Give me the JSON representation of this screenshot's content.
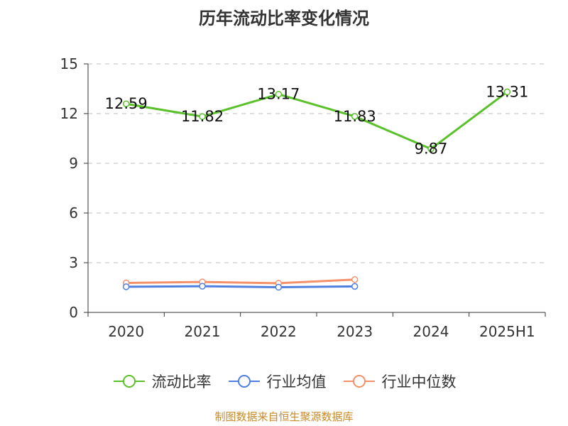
{
  "source": "制图数据来自恒生聚源数据库",
  "chart_data": {
    "type": "line",
    "title": "历年流动比率变化情况",
    "categories": [
      "2020",
      "2021",
      "2022",
      "2023",
      "2024",
      "2025H1"
    ],
    "yticks": [
      "0",
      "3",
      "6",
      "9",
      "12",
      "15"
    ],
    "ylim": [
      0,
      15
    ],
    "grid": true,
    "legend_position": "bottom",
    "series": [
      {
        "name": "流动比率",
        "color": "#5ac12a",
        "values": [
          12.59,
          11.82,
          13.17,
          11.83,
          9.87,
          13.31
        ],
        "labels": [
          "12.59",
          "11.82",
          "13.17",
          "11.83",
          "9.87",
          "13.31"
        ]
      },
      {
        "name": "行业均值",
        "color": "#4f7fe0",
        "values": [
          1.55,
          1.58,
          1.52,
          1.57,
          null,
          null
        ]
      },
      {
        "name": "行业中位数",
        "color": "#f5916a",
        "values": [
          1.78,
          1.84,
          1.76,
          1.98,
          null,
          null
        ]
      }
    ]
  }
}
